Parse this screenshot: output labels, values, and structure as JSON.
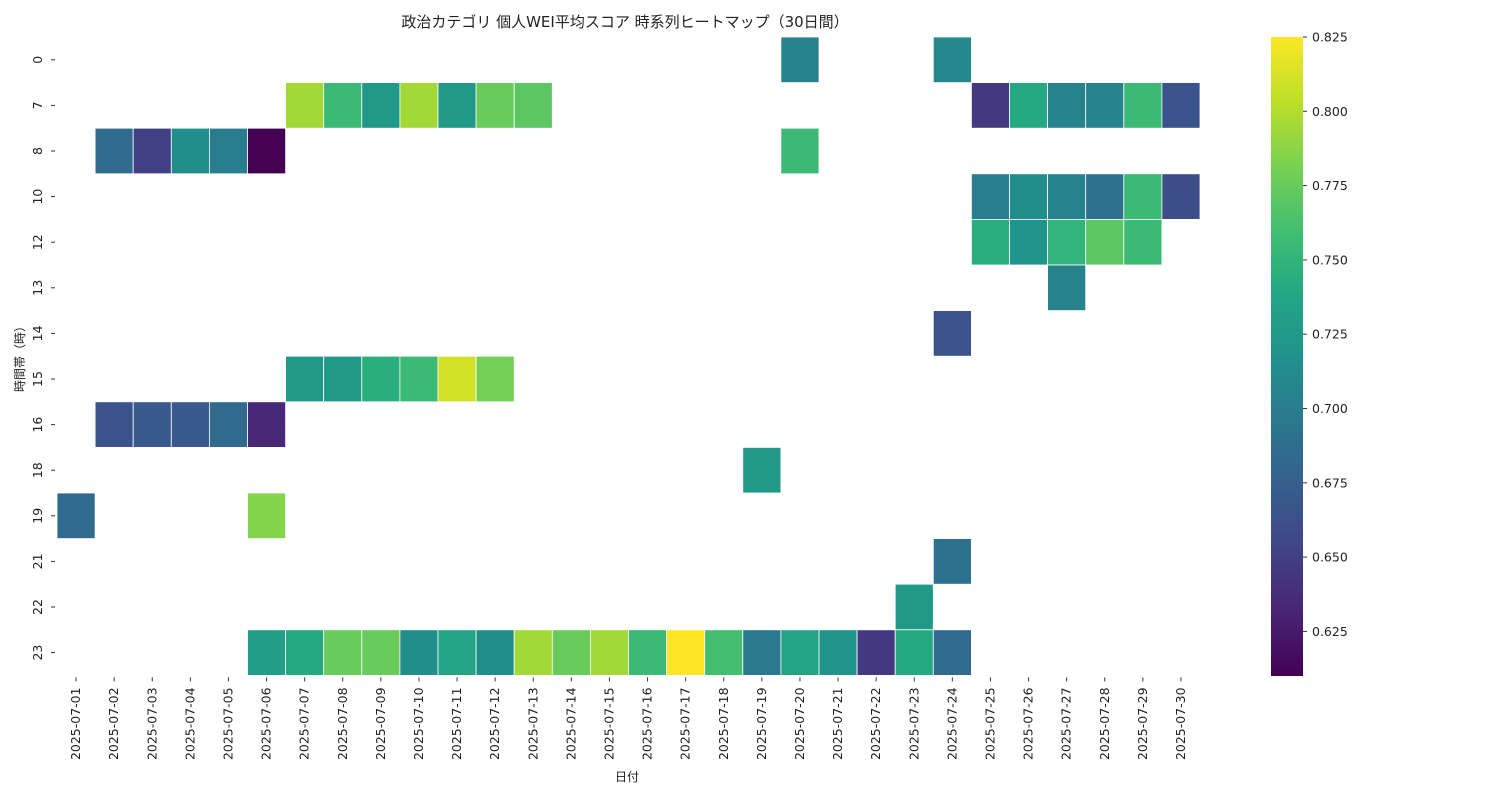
{
  "chart_data": {
    "type": "heatmap",
    "title": "政治カテゴリ 個人WEI平均スコア 時系列ヒートマップ（30日間）",
    "xlabel": "日付",
    "ylabel": "時間帯（時）",
    "x": [
      "2025-07-01",
      "2025-07-02",
      "2025-07-03",
      "2025-07-04",
      "2025-07-05",
      "2025-07-06",
      "2025-07-07",
      "2025-07-08",
      "2025-07-09",
      "2025-07-10",
      "2025-07-11",
      "2025-07-12",
      "2025-07-13",
      "2025-07-14",
      "2025-07-15",
      "2025-07-16",
      "2025-07-17",
      "2025-07-18",
      "2025-07-19",
      "2025-07-20",
      "2025-07-21",
      "2025-07-22",
      "2025-07-23",
      "2025-07-24",
      "2025-07-25",
      "2025-07-26",
      "2025-07-27",
      "2025-07-28",
      "2025-07-29",
      "2025-07-30"
    ],
    "y": [
      "0",
      "7",
      "8",
      "10",
      "12",
      "13",
      "14",
      "15",
      "16",
      "18",
      "19",
      "21",
      "22",
      "23"
    ],
    "colormap": "viridis",
    "vmin": 0.61,
    "vmax": 0.825,
    "colorbar_ticks": [
      "0.625",
      "0.650",
      "0.675",
      "0.700",
      "0.725",
      "0.750",
      "0.775",
      "0.800",
      "0.825"
    ],
    "values": [
      [
        null,
        null,
        null,
        null,
        null,
        null,
        null,
        null,
        null,
        null,
        null,
        null,
        null,
        null,
        null,
        null,
        null,
        null,
        null,
        0.705,
        null,
        null,
        null,
        0.71,
        null,
        null,
        null,
        null,
        null,
        null
      ],
      [
        null,
        null,
        null,
        null,
        null,
        null,
        0.795,
        0.755,
        0.725,
        0.795,
        0.725,
        0.775,
        0.77,
        null,
        null,
        null,
        null,
        null,
        null,
        null,
        null,
        null,
        null,
        null,
        0.645,
        0.74,
        0.705,
        0.705,
        0.755,
        0.665
      ],
      [
        null,
        0.685,
        0.65,
        0.715,
        0.7,
        0.61,
        null,
        null,
        null,
        null,
        null,
        null,
        null,
        null,
        null,
        null,
        null,
        null,
        null,
        0.755,
        null,
        null,
        null,
        null,
        null,
        null,
        null,
        null,
        null,
        null
      ],
      [
        null,
        null,
        null,
        null,
        null,
        null,
        null,
        null,
        null,
        null,
        null,
        null,
        null,
        null,
        null,
        null,
        null,
        null,
        null,
        null,
        null,
        null,
        null,
        null,
        0.7,
        0.715,
        0.705,
        0.69,
        0.755,
        0.66
      ],
      [
        null,
        null,
        null,
        null,
        null,
        null,
        null,
        null,
        null,
        null,
        null,
        null,
        null,
        null,
        null,
        null,
        null,
        null,
        null,
        null,
        null,
        null,
        null,
        null,
        0.745,
        0.72,
        0.75,
        0.77,
        0.755,
        null
      ],
      [
        null,
        null,
        null,
        null,
        null,
        null,
        null,
        null,
        null,
        null,
        null,
        null,
        null,
        null,
        null,
        null,
        null,
        null,
        null,
        null,
        null,
        null,
        null,
        null,
        null,
        null,
        0.705,
        null,
        null,
        null
      ],
      [
        null,
        null,
        null,
        null,
        null,
        null,
        null,
        null,
        null,
        null,
        null,
        null,
        null,
        null,
        null,
        null,
        null,
        null,
        null,
        null,
        null,
        null,
        null,
        0.665,
        null,
        null,
        null,
        null,
        null,
        null
      ],
      [
        null,
        null,
        null,
        null,
        null,
        null,
        0.725,
        0.725,
        0.745,
        0.755,
        0.81,
        0.78,
        null,
        null,
        null,
        null,
        null,
        null,
        null,
        null,
        null,
        null,
        null,
        null,
        null,
        null,
        null,
        null,
        null,
        null
      ],
      [
        null,
        0.665,
        0.67,
        0.67,
        0.685,
        0.635,
        null,
        null,
        null,
        null,
        null,
        null,
        null,
        null,
        null,
        null,
        null,
        null,
        null,
        null,
        null,
        null,
        null,
        null,
        null,
        null,
        null,
        null,
        null,
        null
      ],
      [
        null,
        null,
        null,
        null,
        null,
        null,
        null,
        null,
        null,
        null,
        null,
        null,
        null,
        null,
        null,
        null,
        null,
        null,
        0.725,
        null,
        null,
        null,
        null,
        null,
        null,
        null,
        null,
        null,
        null,
        null
      ],
      [
        0.685,
        null,
        null,
        null,
        null,
        0.785,
        null,
        null,
        null,
        null,
        null,
        null,
        null,
        null,
        null,
        null,
        null,
        null,
        null,
        null,
        null,
        null,
        null,
        null,
        null,
        null,
        null,
        null,
        null,
        null
      ],
      [
        null,
        null,
        null,
        null,
        null,
        null,
        null,
        null,
        null,
        null,
        null,
        null,
        null,
        null,
        null,
        null,
        null,
        null,
        null,
        null,
        null,
        null,
        null,
        0.69,
        null,
        null,
        null,
        null,
        null,
        null
      ],
      [
        null,
        null,
        null,
        null,
        null,
        null,
        null,
        null,
        null,
        null,
        null,
        null,
        null,
        null,
        null,
        null,
        null,
        null,
        null,
        null,
        null,
        null,
        0.725,
        null,
        null,
        null,
        null,
        null,
        null,
        null
      ],
      [
        null,
        null,
        null,
        null,
        null,
        0.73,
        0.74,
        0.775,
        0.775,
        0.715,
        0.735,
        0.715,
        0.795,
        0.775,
        0.795,
        0.755,
        0.825,
        0.76,
        0.695,
        0.735,
        0.72,
        0.645,
        0.74,
        0.685,
        null,
        null,
        null,
        null,
        null,
        null
      ]
    ]
  }
}
